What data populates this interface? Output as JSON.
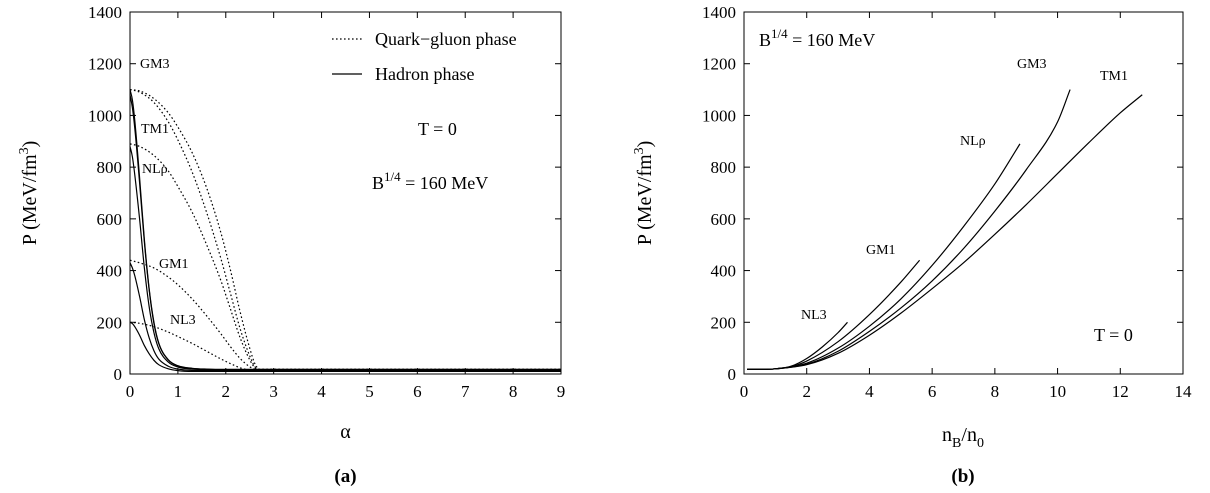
{
  "chart_data": [
    {
      "type": "line",
      "panel_label": "(a)",
      "xlabel": "α",
      "ylabel": "P (MeV/fm",
      "ylabel_sup": "3",
      "ylabel_end": ")",
      "xlim": [
        0,
        9
      ],
      "ylim": [
        0,
        1400
      ],
      "xticks": [
        0,
        1,
        2,
        3,
        4,
        5,
        6,
        7,
        8,
        9
      ],
      "yticks": [
        0,
        200,
        400,
        600,
        800,
        1000,
        1200,
        1400
      ],
      "grid": false,
      "legend": {
        "placement": "top-right",
        "entries": [
          {
            "label": "Quark−gluon phase",
            "style": "dotted"
          },
          {
            "label": "Hadron phase",
            "style": "solid"
          }
        ]
      },
      "annotations": {
        "t_label": "T = 0",
        "bag_prefix": "B",
        "bag_sup": "1/4",
        "bag_suffix": " = 160 MeV"
      },
      "curve_labels": {
        "GM3": "GM3",
        "TM1": "TM1",
        "NLrho": "NLρ",
        "GM1": "GM1",
        "NL3": "NL3"
      },
      "series": [
        {
          "name": "GM3",
          "phase": "quark",
          "x": [
            0,
            0.2,
            0.5,
            0.8,
            1.0,
            1.3,
            1.6,
            1.9,
            2.1,
            2.3,
            2.5,
            2.62,
            2.72,
            9
          ],
          "y": [
            1100,
            1095,
            1065,
            1010,
            955,
            855,
            720,
            545,
            400,
            240,
            100,
            35,
            18,
            18
          ]
        },
        {
          "name": "TM1",
          "phase": "quark",
          "x": [
            0,
            0.2,
            0.5,
            0.8,
            1.0,
            1.3,
            1.6,
            1.9,
            2.1,
            2.3,
            2.5,
            2.62,
            2.72,
            9
          ],
          "y": [
            1100,
            1090,
            1050,
            975,
            905,
            780,
            625,
            445,
            310,
            175,
            70,
            25,
            18,
            18
          ]
        },
        {
          "name": "NLρ",
          "phase": "quark",
          "x": [
            0,
            0.2,
            0.5,
            0.8,
            1.0,
            1.3,
            1.6,
            1.9,
            2.1,
            2.3,
            2.5,
            2.62,
            2.72,
            9
          ],
          "y": [
            890,
            880,
            845,
            785,
            725,
            625,
            500,
            360,
            250,
            140,
            55,
            22,
            18,
            18
          ]
        },
        {
          "name": "GM1",
          "phase": "quark",
          "x": [
            0,
            0.2,
            0.5,
            0.8,
            1.0,
            1.3,
            1.6,
            1.9,
            2.1,
            2.3,
            2.5,
            2.62,
            2.72,
            9
          ],
          "y": [
            440,
            430,
            410,
            375,
            345,
            290,
            225,
            155,
            105,
            60,
            28,
            18,
            16,
            16
          ]
        },
        {
          "name": "NL3",
          "phase": "quark",
          "x": [
            0,
            0.2,
            0.5,
            0.8,
            1.0,
            1.3,
            1.6,
            1.9,
            2.1,
            2.3,
            2.5,
            2.62,
            2.72,
            9
          ],
          "y": [
            200,
            196,
            183,
            162,
            145,
            118,
            88,
            58,
            40,
            24,
            15,
            12,
            12,
            12
          ]
        },
        {
          "name": "GM3",
          "phase": "hadron",
          "x": [
            0,
            0.05,
            0.1,
            0.2,
            0.3,
            0.4,
            0.5,
            0.6,
            0.8,
            1.0,
            1.3,
            1.6,
            2.0,
            2.5,
            9
          ],
          "y": [
            1100,
            1060,
            980,
            760,
            520,
            330,
            200,
            120,
            55,
            32,
            22,
            19,
            18,
            18,
            18
          ]
        },
        {
          "name": "TM1",
          "phase": "hadron",
          "x": [
            0,
            0.05,
            0.1,
            0.2,
            0.3,
            0.4,
            0.5,
            0.6,
            0.8,
            1.0,
            1.3,
            1.6,
            2.0,
            2.5,
            9
          ],
          "y": [
            1080,
            1030,
            950,
            740,
            510,
            325,
            195,
            118,
            54,
            31,
            21,
            18,
            17,
            17,
            17
          ]
        },
        {
          "name": "NLρ",
          "phase": "hadron",
          "x": [
            0,
            0.05,
            0.1,
            0.2,
            0.3,
            0.4,
            0.5,
            0.6,
            0.8,
            1.0,
            1.3,
            1.6,
            2.0,
            2.5,
            9
          ],
          "y": [
            880,
            840,
            770,
            600,
            410,
            260,
            160,
            98,
            46,
            27,
            19,
            16,
            15,
            15,
            15
          ]
        },
        {
          "name": "GM1",
          "phase": "hadron",
          "x": [
            0,
            0.05,
            0.1,
            0.2,
            0.3,
            0.4,
            0.5,
            0.6,
            0.8,
            1.0,
            1.3,
            1.6,
            2.0,
            2.5,
            9
          ],
          "y": [
            430,
            410,
            380,
            300,
            210,
            140,
            90,
            58,
            30,
            19,
            14,
            13,
            13,
            13,
            13
          ]
        },
        {
          "name": "NL3",
          "phase": "hadron",
          "x": [
            0,
            0.05,
            0.1,
            0.2,
            0.3,
            0.4,
            0.5,
            0.6,
            0.8,
            1.0,
            1.3,
            1.6,
            2.0,
            2.5,
            9
          ],
          "y": [
            200,
            195,
            183,
            150,
            110,
            78,
            53,
            36,
            20,
            13,
            10,
            10,
            10,
            10,
            10
          ]
        }
      ]
    },
    {
      "type": "line",
      "panel_label": "(b)",
      "xlabel": "n",
      "xlabel_sub1": "B",
      "xlabel_mid": "/n",
      "xlabel_sub2": "0",
      "ylabel": "P (MeV/fm",
      "ylabel_sup": "3",
      "ylabel_end": ")",
      "xlim": [
        0,
        14
      ],
      "ylim": [
        0,
        1400
      ],
      "xticks": [
        0,
        2,
        4,
        6,
        8,
        10,
        12,
        14
      ],
      "yticks": [
        0,
        200,
        400,
        600,
        800,
        1000,
        1200,
        1400
      ],
      "grid": false,
      "annotations": {
        "t_label": "T = 0",
        "bag_prefix": "B",
        "bag_sup": "1/4",
        "bag_suffix": " = 160 MeV"
      },
      "curve_labels": {
        "NL3": "NL3",
        "GM1": "GM1",
        "NLrho": "NLρ",
        "GM3": "GM3",
        "TM1": "TM1"
      },
      "series": [
        {
          "name": "NL3",
          "x": [
            0.1,
            0.5,
            1.0,
            1.5,
            2.0,
            2.5,
            3.0,
            3.3
          ],
          "y": [
            18,
            18,
            20,
            30,
            60,
            105,
            160,
            200
          ]
        },
        {
          "name": "GM1",
          "x": [
            0.1,
            0.5,
            1.0,
            1.5,
            2.0,
            3.0,
            4.0,
            5.0,
            5.6
          ],
          "y": [
            18,
            18,
            20,
            28,
            50,
            125,
            230,
            355,
            440
          ]
        },
        {
          "name": "NLρ",
          "x": [
            0.1,
            0.5,
            1.0,
            2.0,
            3.0,
            4.0,
            5.0,
            6.0,
            7.0,
            8.0,
            8.8
          ],
          "y": [
            18,
            18,
            20,
            42,
            100,
            185,
            290,
            420,
            570,
            735,
            890
          ]
        },
        {
          "name": "GM3",
          "x": [
            0.1,
            0.5,
            1.0,
            2.0,
            3.0,
            4.0,
            5.0,
            6.0,
            7.0,
            8.0,
            9.0,
            10.0,
            10.4
          ],
          "y": [
            18,
            18,
            20,
            38,
            88,
            165,
            255,
            360,
            485,
            630,
            790,
            975,
            1100
          ]
        },
        {
          "name": "TM1",
          "x": [
            0.1,
            0.5,
            1.0,
            2.0,
            3.0,
            4.0,
            5.0,
            6.0,
            7.0,
            8.0,
            9.0,
            10.0,
            11.0,
            12.0,
            12.7
          ],
          "y": [
            18,
            18,
            20,
            36,
            80,
            150,
            235,
            330,
            430,
            540,
            655,
            775,
            895,
            1010,
            1080
          ]
        }
      ]
    }
  ]
}
